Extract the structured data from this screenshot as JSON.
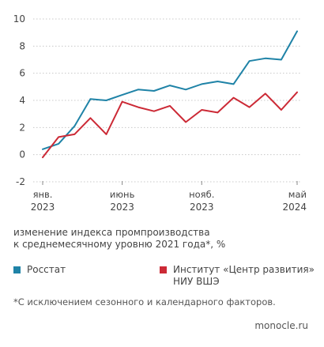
{
  "chart_data": {
    "type": "line",
    "xlabel": "",
    "ylabel": "",
    "ylim": [
      -2,
      10
    ],
    "y_ticks": [
      -2,
      0,
      2,
      4,
      6,
      8,
      10
    ],
    "x_ticks": [
      {
        "month": "янв.",
        "year": "2023",
        "index": 0
      },
      {
        "month": "июнь",
        "year": "2023",
        "index": 5
      },
      {
        "month": "нояб.",
        "year": "2023",
        "index": 10
      },
      {
        "month": "май",
        "year": "2024",
        "index": 16
      }
    ],
    "grid": "horizontal",
    "series": [
      {
        "name": "Росстат",
        "color": "#1f83a7",
        "values": [
          0.4,
          0.8,
          2.1,
          4.1,
          4.0,
          4.4,
          4.8,
          4.7,
          5.1,
          4.8,
          5.2,
          5.4,
          5.2,
          6.9,
          7.1,
          7.0,
          9.1
        ]
      },
      {
        "name": "Институт «Центр развития» НИУ ВШЭ",
        "color": "#cc2a36",
        "values": [
          -0.2,
          1.3,
          1.5,
          2.7,
          1.5,
          3.9,
          3.5,
          3.2,
          3.6,
          2.4,
          3.3,
          3.1,
          4.2,
          3.5,
          4.5,
          3.3,
          4.6
        ]
      }
    ]
  },
  "caption": {
    "line1": "изменение индекса промпроизводства",
    "line2": "к среднемесячному уровню 2021 года*, %"
  },
  "legend": {
    "rosstat": "Росстат",
    "hse_line1": "Институт «Центр развития»",
    "hse_line2": "НИУ ВШЭ"
  },
  "footnote": "*С исключением сезонного и календарного факторов.",
  "source": "monocle.ru"
}
